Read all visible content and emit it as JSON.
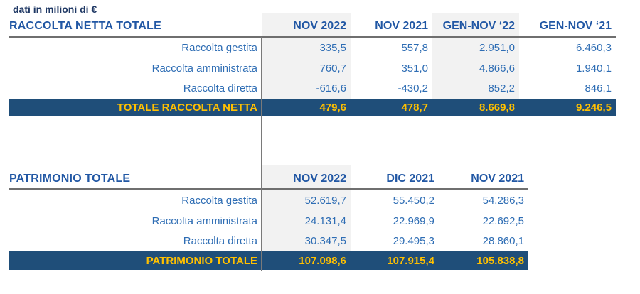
{
  "note": "dati in milioni di €",
  "colors": {
    "total_row_bg": "#1F4E79",
    "total_row_text": "#FFC000",
    "header_text": "#2157A4",
    "body_text": "#2E6DB4",
    "note_text": "#1F3864",
    "shaded_column_bg": "#F2F2F2",
    "rule_gray": "#6F6F6F"
  },
  "raccolta": {
    "title": "RACCOLTA NETTA TOTALE",
    "columns": [
      "NOV 2022",
      "NOV 2021",
      "GEN-NOV ‘22",
      "GEN-NOV ‘21"
    ],
    "rows": [
      {
        "label": "Raccolta gestita",
        "values": [
          "335,5",
          "557,8",
          "2.951,0",
          "6.460,3"
        ]
      },
      {
        "label": "Raccolta amministrata",
        "values": [
          "760,7",
          "351,0",
          "4.866,6",
          "1.940,1"
        ]
      },
      {
        "label": "Raccolta diretta",
        "values": [
          "-616,6",
          "-430,2",
          "852,2",
          "846,1"
        ]
      }
    ],
    "total": {
      "label": "TOTALE RACCOLTA NETTA",
      "values": [
        "479,6",
        "478,7",
        "8.669,8",
        "9.246,5"
      ]
    }
  },
  "patrimonio": {
    "title": "PATRIMONIO TOTALE",
    "columns": [
      "NOV 2022",
      "DIC 2021",
      "NOV 2021"
    ],
    "rows": [
      {
        "label": "Raccolta gestita",
        "values": [
          "52.619,7",
          "55.450,2",
          "54.286,3"
        ]
      },
      {
        "label": "Raccolta amministrata",
        "values": [
          "24.131,4",
          "22.969,9",
          "22.692,5"
        ]
      },
      {
        "label": "Raccolta diretta",
        "values": [
          "30.347,5",
          "29.495,3",
          "28.860,1"
        ]
      }
    ],
    "total": {
      "label": "PATRIMONIO TOTALE",
      "values": [
        "107.098,6",
        "107.915,4",
        "105.838,8"
      ]
    }
  }
}
